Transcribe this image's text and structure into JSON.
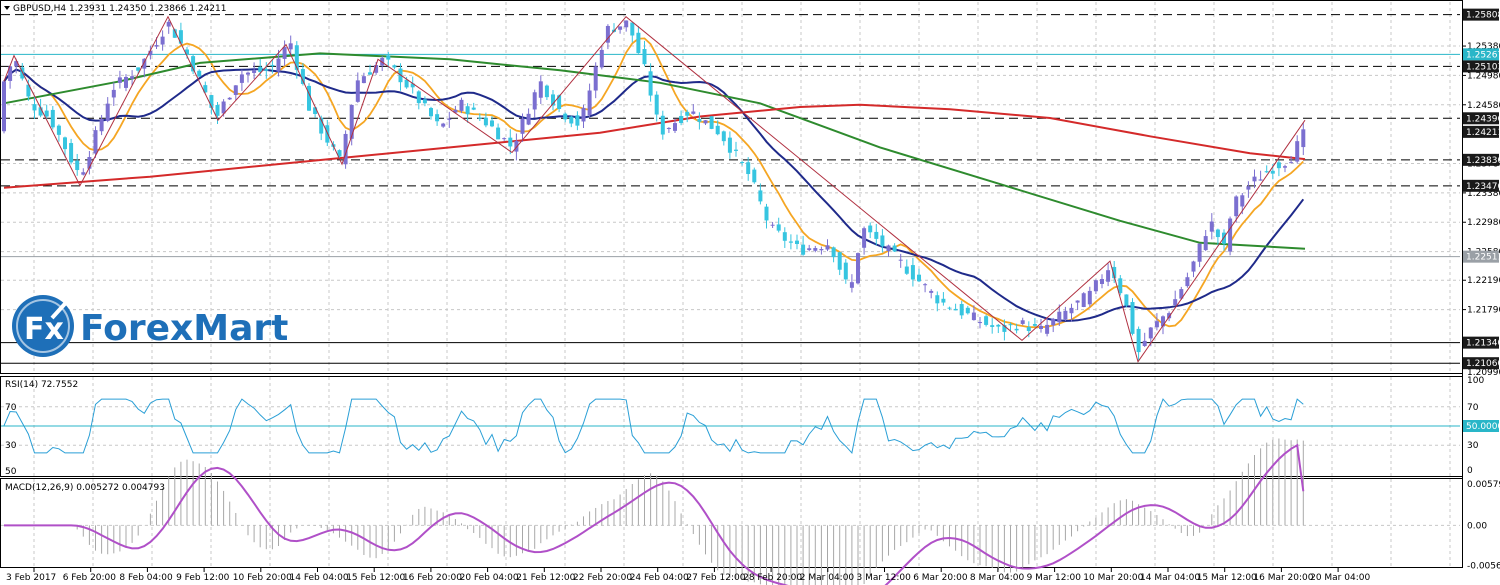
{
  "window": {
    "symbol_header": "GBPUSD,H4  1.23931 1.24350 1.23866 1.24211"
  },
  "price_axis": {
    "ticks": [
      "1.25380",
      "1.24980",
      "1.24580",
      "1.23780",
      "1.23380",
      "1.22980",
      "1.22580",
      "1.22190",
      "1.21790"
    ],
    "tick_prices": [
      1.2538,
      1.2498,
      1.2458,
      1.2378,
      1.2338,
      1.2298,
      1.2258,
      1.2219,
      1.2179
    ],
    "price_range": [
      1.2094,
      1.2598
    ],
    "levels": [
      {
        "label": "1.25808",
        "price": 1.25808,
        "style": "dashed",
        "color": "#000000"
      },
      {
        "label": "1.25267",
        "price": 1.25267,
        "style": "solid",
        "color": "#29b6c8"
      },
      {
        "label": "1.25103",
        "price": 1.25103,
        "style": "dashed",
        "color": "#000000"
      },
      {
        "label": "1.24396",
        "price": 1.24396,
        "style": "dashed",
        "color": "#000000"
      },
      {
        "label": "1.24211",
        "price": 1.24211,
        "style": "none",
        "color": "#000000"
      },
      {
        "label": "1.23830",
        "price": 1.2383,
        "style": "dashed",
        "color": "#000000"
      },
      {
        "label": "1.23476",
        "price": 1.23476,
        "style": "dashed",
        "color": "#000000"
      },
      {
        "label": "1.22511",
        "price": 1.22511,
        "style": "solid",
        "color": "#9aa0a6"
      },
      {
        "label": "1.21340",
        "price": 1.2134,
        "style": "solid",
        "color": "#000000"
      },
      {
        "label": "1.21060",
        "price": 1.2106,
        "style": "solid",
        "color": "#000000"
      }
    ],
    "bottom_cut_label": "1.20990"
  },
  "rsi": {
    "header": "RSI(14) 72.7552",
    "left_ticks": [
      "70",
      "30",
      "50"
    ],
    "right_ticks": [
      "100",
      "70",
      "30",
      "0"
    ],
    "level_label": "50.0000",
    "value": 72.7552
  },
  "macd": {
    "header": "MACD(12,26,9) 0.005272 0.004793",
    "ticks": [
      "0.005791",
      "0.00",
      "-0.005644"
    ],
    "main": 0.005272,
    "signal": 0.004793
  },
  "time_axis": {
    "labels": [
      "3 Feb 2017",
      "6 Feb 20:00",
      "8 Feb 04:00",
      "9 Feb 12:00",
      "10 Feb 20:00",
      "14 Feb 04:00",
      "15 Feb 12:00",
      "16 Feb 20:00",
      "20 Feb 04:00",
      "21 Feb 12:00",
      "22 Feb 20:00",
      "24 Feb 04:00",
      "27 Feb 12:00",
      "28 Feb 20:00",
      "2 Mar 04:00",
      "3 Mar 12:00",
      "6 Mar 20:00",
      "8 Mar 04:00",
      "9 Mar 12:00",
      "10 Mar 20:00",
      "14 Mar 04:00",
      "15 Mar 12:00",
      "16 Mar 20:00",
      "20 Mar 04:00"
    ]
  },
  "logo": {
    "icon_text": "Fx",
    "brand": "ForexMart"
  },
  "colors": {
    "bull_candle": "#7b6fd0",
    "bear_candle": "#36c5e0",
    "ma_fast": "#f5a623",
    "ma_mid": "#1f2a8a",
    "ma_slow": "#2e8b2e",
    "ma_long": "#d42a2a",
    "zigzag": "#b03040",
    "rsi_line": "#2a9fd6",
    "macd_line": "#b050c8",
    "brand_blue": "#1e6fb8"
  }
}
